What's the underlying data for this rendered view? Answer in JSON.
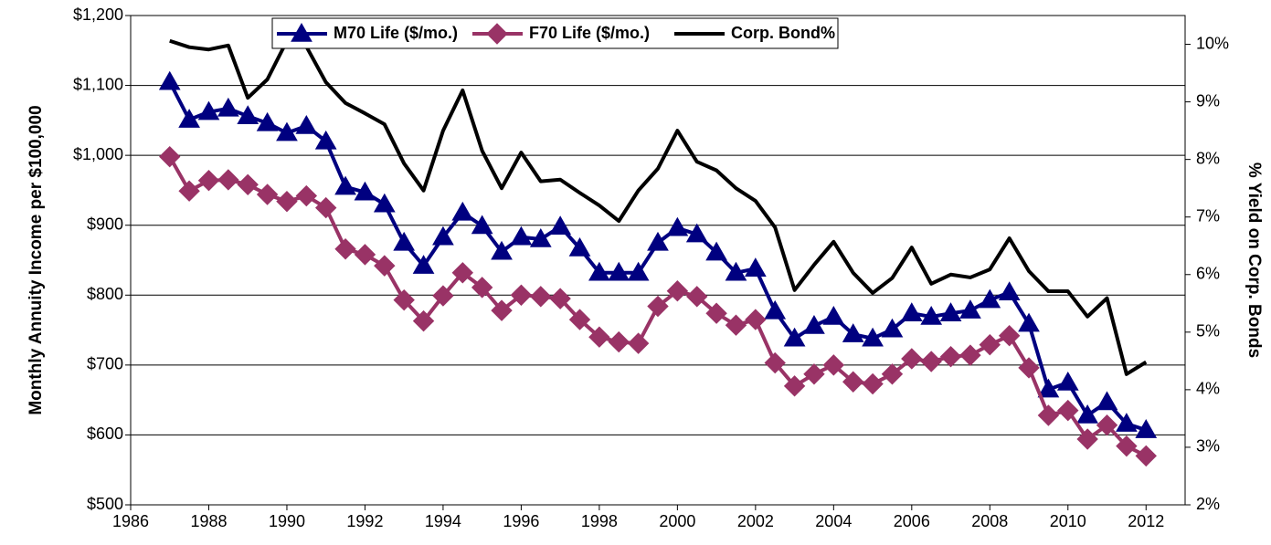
{
  "chart_data": {
    "type": "line",
    "y_label": "Monthly Annuity Income per $100,000",
    "y2_label": "% Yield on Corp. Bonds",
    "x": [
      1987,
      1987.5,
      1988,
      1988.5,
      1989,
      1989.5,
      1990,
      1990.5,
      1991,
      1991.5,
      1992,
      1992.5,
      1993,
      1993.5,
      1994,
      1994.5,
      1995,
      1995.5,
      1996,
      1996.5,
      1997,
      1997.5,
      1998,
      1998.5,
      1999,
      1999.5,
      2000,
      2000.5,
      2001,
      2001.5,
      2002,
      2002.5,
      2003,
      2003.5,
      2004,
      2004.5,
      2005,
      2005.5,
      2006,
      2006.5,
      2007,
      2007.5,
      2008,
      2008.5,
      2009,
      2009.5,
      2010,
      2010.5,
      2011,
      2011.5,
      2012
    ],
    "series": [
      {
        "name": "M70 Life ($/mo.)",
        "color": "#000080",
        "marker": "triangle",
        "values": [
          1105,
          1051,
          1062,
          1067,
          1056,
          1046,
          1032,
          1042,
          1020,
          955,
          947,
          930,
          875,
          842,
          883,
          918,
          899,
          862,
          883,
          880,
          898,
          867,
          832,
          832,
          832,
          875,
          896,
          887,
          861,
          832,
          838,
          777,
          738,
          756,
          769,
          744,
          738,
          751,
          774,
          769,
          774,
          778,
          793,
          804,
          759,
          665,
          675,
          628,
          647,
          616,
          607
        ]
      },
      {
        "name": "F70 Life ($/mo.)",
        "color": "#993366",
        "marker": "diamond",
        "values": [
          998,
          949,
          964,
          965,
          958,
          944,
          934,
          942,
          925,
          866,
          858,
          842,
          793,
          763,
          799,
          832,
          811,
          778,
          800,
          798,
          795,
          765,
          740,
          733,
          731,
          784,
          806,
          798,
          774,
          757,
          765,
          703,
          670,
          687,
          700,
          676,
          673,
          687,
          709,
          705,
          712,
          714,
          729,
          742,
          696,
          628,
          635,
          594,
          614,
          584,
          570
        ]
      },
      {
        "name": "Corp. Bond%",
        "color": "#000000",
        "axis": "y2",
        "values": [
          10.06,
          9.95,
          9.91,
          9.98,
          9.07,
          9.39,
          10.06,
          9.96,
          9.34,
          8.98,
          8.8,
          8.61,
          7.93,
          7.46,
          8.5,
          9.2,
          8.15,
          7.5,
          8.12,
          7.62,
          7.65,
          7.42,
          7.2,
          6.93,
          7.46,
          7.84,
          8.5,
          7.96,
          7.81,
          7.5,
          7.28,
          6.82,
          5.73,
          6.17,
          6.57,
          6.03,
          5.68,
          5.94,
          6.47,
          5.84,
          6.0,
          5.95,
          6.09,
          6.63,
          6.06,
          5.71,
          5.71,
          5.27,
          5.59,
          4.27,
          4.48
        ]
      }
    ],
    "xlim": [
      1986,
      2013
    ],
    "xticks": [
      1986,
      1988,
      1990,
      1992,
      1994,
      1996,
      1998,
      2000,
      2002,
      2004,
      2006,
      2008,
      2010,
      2012
    ],
    "ylim": [
      500,
      1200
    ],
    "yticks": [
      {
        "value": 500,
        "label": "$500"
      },
      {
        "value": 600,
        "label": "$600"
      },
      {
        "value": 700,
        "label": "$700"
      },
      {
        "value": 800,
        "label": "$800"
      },
      {
        "value": 900,
        "label": "$900"
      },
      {
        "value": 1000,
        "label": "$1,000"
      },
      {
        "value": 1100,
        "label": "$1,100"
      },
      {
        "value": 1200,
        "label": "$1,200"
      }
    ],
    "y2lim": [
      2,
      10.5
    ],
    "y2ticks": [
      {
        "value": 2,
        "label": "2%"
      },
      {
        "value": 3,
        "label": "3%"
      },
      {
        "value": 4,
        "label": "4%"
      },
      {
        "value": 5,
        "label": "5%"
      },
      {
        "value": 6,
        "label": "6%"
      },
      {
        "value": 7,
        "label": "7%"
      },
      {
        "value": 8,
        "label": "8%"
      },
      {
        "value": 9,
        "label": "9%"
      },
      {
        "value": 10,
        "label": "10%"
      }
    ],
    "grid": true,
    "legend": "top"
  }
}
